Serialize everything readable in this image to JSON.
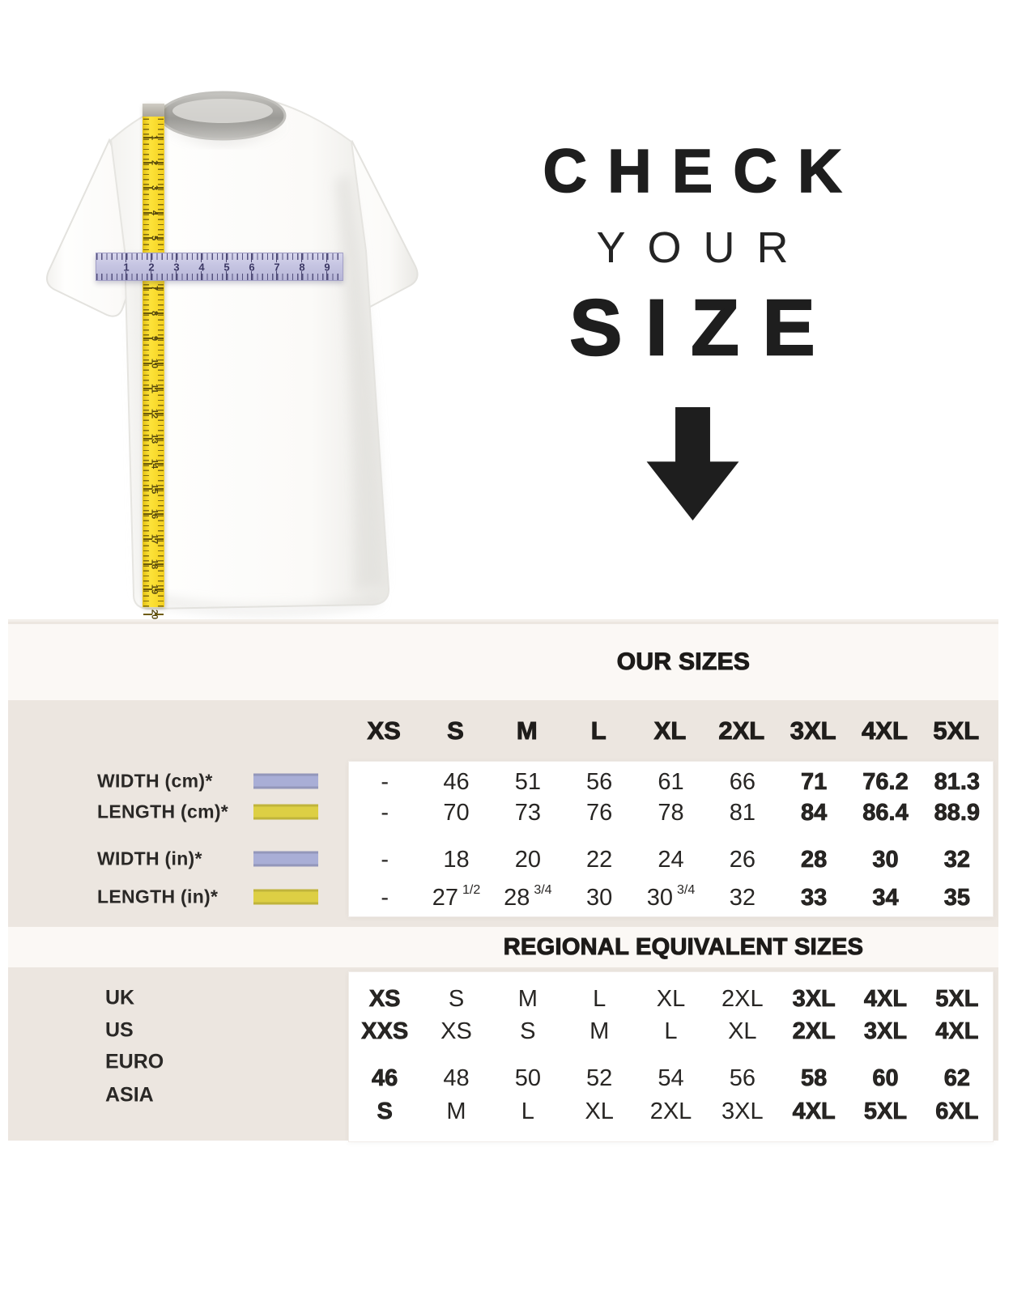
{
  "hero": {
    "heading_line1": "CHECK",
    "heading_line2": "YOUR",
    "heading_line3": "SIZE",
    "arrow_icon": "down-arrow"
  },
  "shirt": {
    "tape_numbers": [
      1,
      2,
      3,
      4,
      5,
      6,
      7,
      8,
      9,
      10,
      11,
      12,
      13,
      14,
      15,
      16,
      17,
      18,
      19,
      20
    ],
    "ruler_numbers": [
      1,
      2,
      3,
      4,
      5,
      6,
      7,
      8,
      9
    ]
  },
  "size_table": {
    "title": "OUR SIZES",
    "columns": [
      "XS",
      "S",
      "M",
      "L",
      "XL",
      "2XL",
      "3XL",
      "4XL",
      "5XL"
    ],
    "bold_columns": [
      6,
      7,
      8
    ],
    "rows": [
      {
        "label": "WIDTH (cm)*",
        "swatch": "lavender",
        "values": [
          "-",
          "46",
          "51",
          "56",
          "61",
          "66",
          "71",
          "76.2",
          "81.3"
        ]
      },
      {
        "label": "LENGTH (cm)*",
        "swatch": "yellow",
        "values": [
          "-",
          "70",
          "73",
          "76",
          "78",
          "81",
          "84",
          "86.4",
          "88.9"
        ]
      },
      {
        "label": "WIDTH (in)*",
        "swatch": "lavender",
        "values": [
          "-",
          "18",
          "20",
          "22",
          "24",
          "26",
          "28",
          "30",
          "32"
        ]
      },
      {
        "label": "LENGTH (in)*",
        "swatch": "yellow",
        "values": [
          "-",
          "27 1/2",
          "28 3/4",
          "30",
          "30 3/4",
          "32",
          "33",
          "34",
          "35"
        ]
      }
    ]
  },
  "regional_table": {
    "title": "REGIONAL EQUIVALENT SIZES",
    "bold_columns": [
      0,
      6,
      7,
      8
    ],
    "rows": [
      {
        "label": "UK",
        "values": [
          "XS",
          "S",
          "M",
          "L",
          "XL",
          "2XL",
          "3XL",
          "4XL",
          "5XL"
        ]
      },
      {
        "label": "US",
        "values": [
          "XXS",
          "XS",
          "S",
          "M",
          "L",
          "XL",
          "2XL",
          "3XL",
          "4XL"
        ]
      },
      {
        "label": "EURO",
        "values": [
          "46",
          "48",
          "50",
          "52",
          "54",
          "56",
          "58",
          "60",
          "62"
        ]
      },
      {
        "label": "ASIA",
        "values": [
          "S",
          "M",
          "L",
          "XL",
          "2XL",
          "3XL",
          "4XL",
          "5XL",
          "6XL"
        ]
      }
    ]
  },
  "colors": {
    "beige_bg": "#ece6e0",
    "band_bg": "#fbf8f5",
    "panel_bg": "#ffffff",
    "text": "#1f1d1b",
    "lavender": "#a9aed6",
    "yellow": "#ddcf44",
    "tape_yellow": "#f4d01e",
    "ruler_lavender": "#c6c5e2"
  }
}
